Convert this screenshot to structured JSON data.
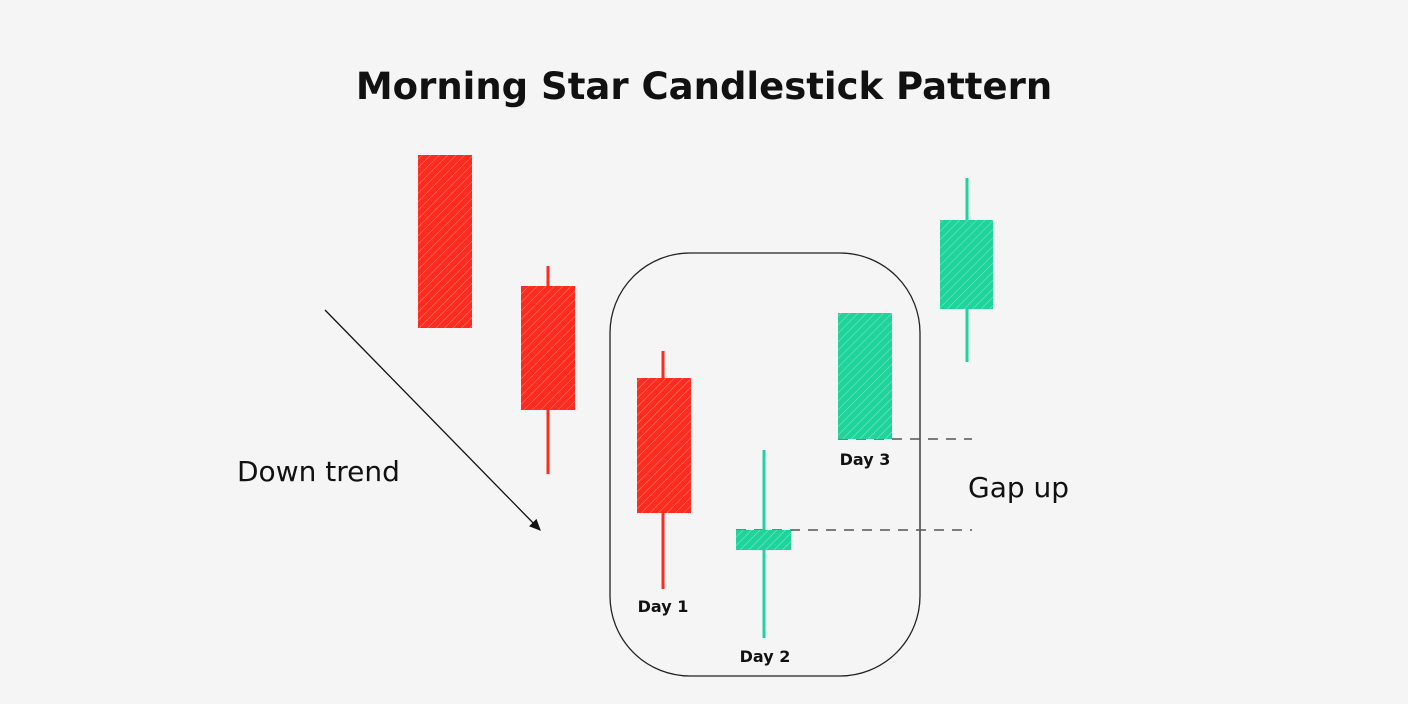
{
  "title": "Morning Star Candlestick Pattern",
  "labels": {
    "down_trend": "Down trend",
    "gap_up": "Gap up",
    "day1": "Day 1",
    "day2": "Day 2",
    "day3": "Day 3"
  },
  "colors": {
    "bearish": "#ff2b1f",
    "bullish": "#1fd49a",
    "background": "#f5f5f5"
  }
}
